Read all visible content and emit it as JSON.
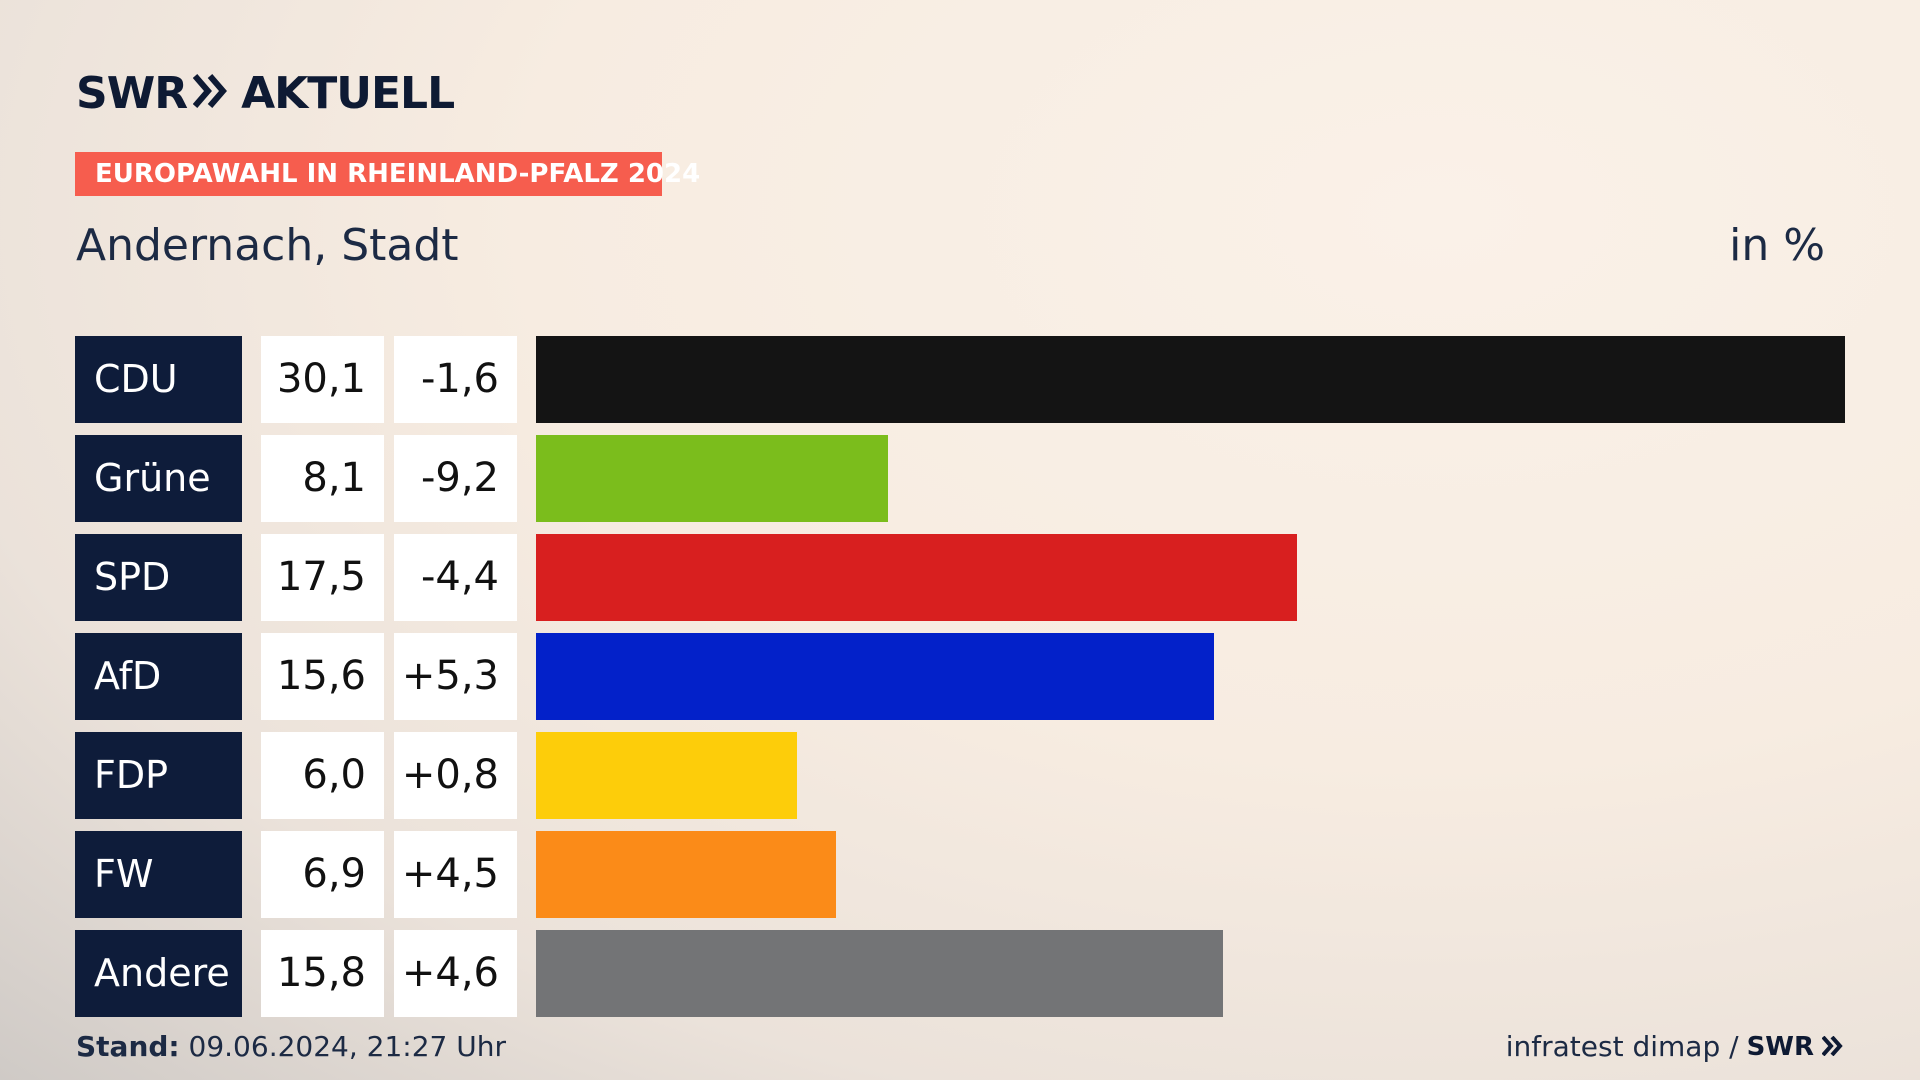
{
  "header": {
    "logo_swr": "SWR",
    "logo_aktuell": "AKTUELL",
    "tag": "EUROPAWAHL IN RHEINLAND-PFALZ 2024",
    "title": "Andernach, Stadt",
    "unit": "in %"
  },
  "footer": {
    "stand_label": "Stand:",
    "stand_value": "09.06.2024, 21:27 Uhr",
    "source": "infratest dimap /",
    "source_logo": "SWR"
  },
  "chart_data": {
    "type": "bar",
    "orientation": "horizontal",
    "categories": [
      "CDU",
      "Grüne",
      "SPD",
      "AfD",
      "FDP",
      "FW",
      "Andere"
    ],
    "values": [
      30.1,
      8.1,
      17.5,
      15.6,
      6.0,
      6.9,
      15.8
    ],
    "value_labels": [
      "30,1",
      "8,1",
      "17,5",
      "15,6",
      "6,0",
      "6,9",
      "15,8"
    ],
    "change_labels": [
      "-1,6",
      "-9,2",
      "-4,4",
      "+5,3",
      "+0,8",
      "+4,5",
      "+4,6"
    ],
    "changes": [
      -1.6,
      -9.2,
      -4.4,
      5.3,
      0.8,
      4.5,
      4.6
    ],
    "colors": [
      "#141414",
      "#7bbd1c",
      "#d81f1f",
      "#0321c9",
      "#fdcd0a",
      "#fb8b18",
      "#737476"
    ],
    "xlim": [
      0,
      30.1
    ],
    "unit": "in %"
  }
}
